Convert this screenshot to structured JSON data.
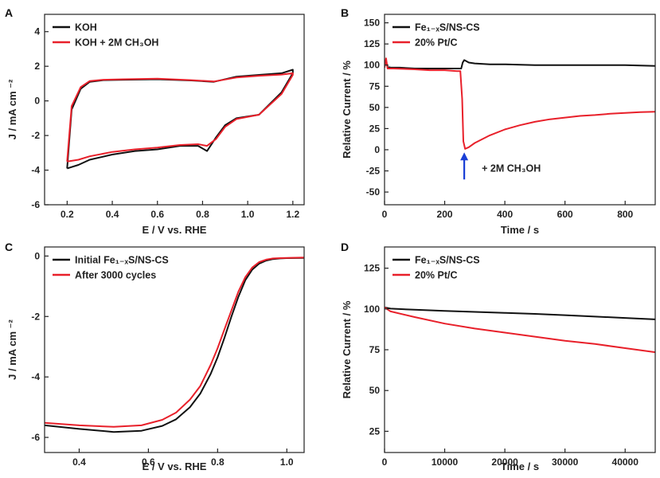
{
  "colors": {
    "black": "#111111",
    "red": "#e8202a",
    "blue": "#1a3fd6"
  },
  "chart_data": [
    {
      "panel": "A",
      "type": "line",
      "xlabel": "E / V vs. RHE",
      "ylabel": "J / mA cm ⁻²",
      "xlim": [
        0.1,
        1.25
      ],
      "ylim": [
        -6,
        5
      ],
      "xticks": [
        "0.2",
        "0.4",
        "0.6",
        "0.8",
        "1.0",
        "1.2"
      ],
      "yticks": [
        "-6",
        "-4",
        "-2",
        "0",
        "2",
        "4"
      ],
      "legend": "top-left",
      "series": [
        {
          "name": "KOH",
          "color": "black",
          "x": [
            0.2,
            0.22,
            0.26,
            0.3,
            0.36,
            0.45,
            0.6,
            0.75,
            0.85,
            0.95,
            1.05,
            1.15,
            1.2,
            1.2,
            1.15,
            1.05,
            0.95,
            0.9,
            0.86,
            0.82,
            0.78,
            0.7,
            0.6,
            0.5,
            0.4,
            0.3,
            0.25,
            0.2
          ],
          "y": [
            -3.9,
            -0.5,
            0.7,
            1.1,
            1.2,
            1.22,
            1.25,
            1.18,
            1.1,
            1.4,
            1.5,
            1.6,
            1.8,
            1.6,
            0.5,
            -0.8,
            -1.0,
            -1.4,
            -2.1,
            -2.9,
            -2.6,
            -2.6,
            -2.8,
            -2.9,
            -3.1,
            -3.4,
            -3.7,
            -3.9
          ]
        },
        {
          "name": "KOH + 2M CH₃OH",
          "color": "red",
          "x": [
            0.2,
            0.22,
            0.26,
            0.3,
            0.36,
            0.45,
            0.6,
            0.75,
            0.85,
            0.95,
            1.05,
            1.15,
            1.2,
            1.2,
            1.15,
            1.05,
            0.95,
            0.9,
            0.86,
            0.82,
            0.78,
            0.7,
            0.6,
            0.5,
            0.4,
            0.3,
            0.25,
            0.2
          ],
          "y": [
            -3.5,
            -0.3,
            0.8,
            1.15,
            1.22,
            1.25,
            1.28,
            1.2,
            1.12,
            1.35,
            1.45,
            1.52,
            1.6,
            1.5,
            0.4,
            -0.8,
            -1.05,
            -1.5,
            -2.2,
            -2.6,
            -2.5,
            -2.55,
            -2.7,
            -2.8,
            -2.95,
            -3.2,
            -3.4,
            -3.5
          ]
        }
      ]
    },
    {
      "panel": "B",
      "type": "line",
      "xlabel": "Time / s",
      "ylabel": "Relative Current / %",
      "xlim": [
        0,
        900
      ],
      "ylim": [
        -65,
        160
      ],
      "xticks": [
        "0",
        "200",
        "400",
        "600",
        "800"
      ],
      "yticks": [
        "-50",
        "-25",
        "0",
        "25",
        "50",
        "75",
        "100",
        "125",
        "150"
      ],
      "legend": "top-left",
      "annotation": {
        "text": "+ 2M CH₃OH",
        "x": 265,
        "y": -5
      },
      "series": [
        {
          "name": "Fe₁₋ₓS/NS-CS",
          "color": "black",
          "x": [
            0,
            5,
            10,
            20,
            50,
            100,
            150,
            200,
            240,
            255,
            260,
            265,
            270,
            280,
            300,
            350,
            400,
            500,
            600,
            700,
            800,
            900
          ],
          "y": [
            100,
            104,
            98,
            97,
            97,
            96,
            96,
            96,
            96,
            96,
            103,
            106,
            105,
            103,
            102,
            101,
            101,
            100,
            100,
            100,
            100,
            99
          ]
        },
        {
          "name": "20% Pt/C",
          "color": "red",
          "x": [
            0,
            5,
            10,
            30,
            100,
            150,
            200,
            240,
            252,
            258,
            262,
            268,
            280,
            300,
            350,
            400,
            450,
            500,
            550,
            600,
            650,
            700,
            750,
            800,
            850,
            900
          ],
          "y": [
            97,
            108,
            96,
            96,
            95,
            94,
            94,
            93,
            93,
            60,
            10,
            1,
            3,
            8,
            17,
            24,
            29,
            33,
            36,
            38,
            40,
            41,
            42.5,
            43.5,
            44.5,
            45
          ]
        }
      ]
    },
    {
      "panel": "C",
      "type": "line",
      "xlabel": "E / V vs. RHE",
      "ylabel": "J / mA cm ⁻²",
      "xlim": [
        0.3,
        1.05
      ],
      "ylim": [
        -6.5,
        0.3
      ],
      "xticks": [
        "0.4",
        "0.6",
        "0.8",
        "1.0"
      ],
      "yticks": [
        "-6",
        "-4",
        "-2",
        "0"
      ],
      "legend": "top-left",
      "series": [
        {
          "name": "Initial Fe₁₋ₓS/NS-CS",
          "color": "black",
          "x": [
            0.3,
            0.4,
            0.5,
            0.58,
            0.64,
            0.68,
            0.72,
            0.75,
            0.78,
            0.8,
            0.82,
            0.84,
            0.86,
            0.88,
            0.9,
            0.92,
            0.94,
            0.96,
            0.98,
            1.0,
            1.05
          ],
          "y": [
            -5.6,
            -5.72,
            -5.82,
            -5.78,
            -5.62,
            -5.4,
            -5.0,
            -4.55,
            -3.9,
            -3.35,
            -2.7,
            -2.0,
            -1.35,
            -0.8,
            -0.45,
            -0.25,
            -0.15,
            -0.1,
            -0.08,
            -0.07,
            -0.06
          ]
        },
        {
          "name": "After 3000 cycles",
          "color": "red",
          "x": [
            0.3,
            0.4,
            0.5,
            0.58,
            0.64,
            0.68,
            0.72,
            0.75,
            0.78,
            0.8,
            0.82,
            0.84,
            0.86,
            0.88,
            0.9,
            0.92,
            0.94,
            0.96,
            0.98,
            1.0,
            1.05
          ],
          "y": [
            -5.52,
            -5.6,
            -5.65,
            -5.6,
            -5.42,
            -5.18,
            -4.75,
            -4.3,
            -3.6,
            -3.05,
            -2.42,
            -1.8,
            -1.18,
            -0.7,
            -0.38,
            -0.2,
            -0.12,
            -0.08,
            -0.07,
            -0.06,
            -0.05
          ]
        }
      ]
    },
    {
      "panel": "D",
      "type": "line",
      "xlabel": "Time / s",
      "ylabel": "Relative Current / %",
      "xlim": [
        0,
        45000
      ],
      "ylim": [
        12,
        138
      ],
      "xticks": [
        "0",
        "10000",
        "20000",
        "30000",
        "40000"
      ],
      "yticks": [
        "25",
        "50",
        "75",
        "100",
        "125"
      ],
      "legend": "top-left",
      "series": [
        {
          "name": "Fe₁₋ₓS/NS-CS",
          "color": "black",
          "x": [
            0,
            1000,
            5000,
            10000,
            15000,
            20000,
            25000,
            30000,
            35000,
            40000,
            45000
          ],
          "y": [
            101,
            100.2,
            99.5,
            98.8,
            98.2,
            97.6,
            97.0,
            96.2,
            95.3,
            94.5,
            93.6
          ]
        },
        {
          "name": "20% Pt/C",
          "color": "red",
          "x": [
            0,
            1000,
            5000,
            10000,
            15000,
            20000,
            25000,
            30000,
            35000,
            40000,
            45000
          ],
          "y": [
            101,
            98.5,
            95,
            91,
            88,
            85.5,
            83,
            80.5,
            78.5,
            76,
            73.5
          ]
        }
      ]
    }
  ]
}
